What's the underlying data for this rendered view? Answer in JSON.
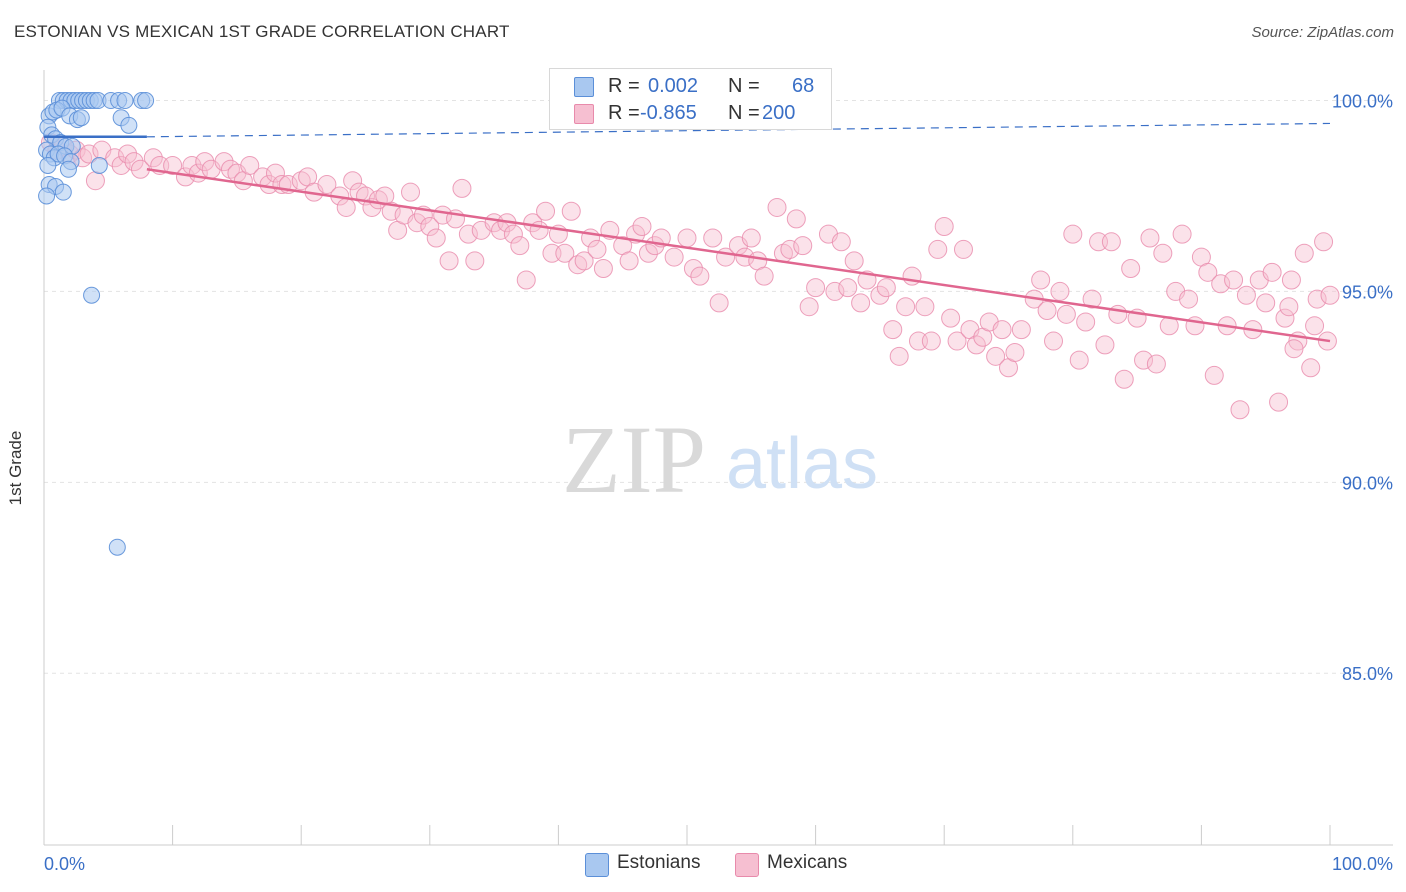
{
  "header": {
    "title": "ESTONIAN VS MEXICAN 1ST GRADE CORRELATION CHART",
    "source": "Source: ZipAtlas.com"
  },
  "legend": {
    "r_label": "R =",
    "n_label": "N =",
    "estonians": {
      "r": "0.002",
      "n": "68"
    },
    "mexicans": {
      "r": "-0.865",
      "n": "200"
    }
  },
  "watermark": {
    "zip": "ZIP",
    "atlas": "atlas"
  },
  "colors": {
    "estonian_fill": "#a9c8f0",
    "estonian_stroke": "#5b8fd8",
    "estonian_line": "#3a6fc6",
    "mexican_fill": "#f6bfd1",
    "mexican_stroke": "#e88aab",
    "mexican_line": "#e0668f",
    "axis_text": "#3a6fc6"
  },
  "chart_data": {
    "type": "scatter",
    "title": "ESTONIAN VS MEXICAN 1ST GRADE CORRELATION CHART",
    "xlabel": "",
    "ylabel": "1st Grade",
    "xlim": [
      0,
      100
    ],
    "ylim": [
      80.5,
      100.8
    ],
    "x_tick_labels": [
      "0.0%",
      "100.0%"
    ],
    "y_ticks": [
      100,
      95,
      90,
      85
    ],
    "y_tick_labels": [
      "100.0%",
      "95.0%",
      "90.0%",
      "85.0%"
    ],
    "legend_position": "top-center",
    "series": [
      {
        "name": "Estonians",
        "r": 0.002,
        "n": 68,
        "trend": {
          "x": [
            0,
            8
          ],
          "y": [
            99.05,
            99.05
          ],
          "dashed_extension_to": [
            100,
            99.4
          ]
        },
        "points": [
          [
            1.2,
            100
          ],
          [
            1.5,
            100
          ],
          [
            1.8,
            100
          ],
          [
            2.1,
            100
          ],
          [
            2.4,
            100
          ],
          [
            2.7,
            100
          ],
          [
            3.0,
            100
          ],
          [
            3.3,
            100
          ],
          [
            3.6,
            100
          ],
          [
            3.9,
            100
          ],
          [
            4.2,
            100
          ],
          [
            5.2,
            100
          ],
          [
            5.8,
            100
          ],
          [
            6.3,
            100
          ],
          [
            7.6,
            100
          ],
          [
            7.9,
            100
          ],
          [
            0.4,
            99.6
          ],
          [
            0.7,
            99.7
          ],
          [
            1.0,
            99.75
          ],
          [
            1.4,
            99.8
          ],
          [
            2.0,
            99.6
          ],
          [
            2.6,
            99.5
          ],
          [
            2.9,
            99.55
          ],
          [
            6.0,
            99.55
          ],
          [
            6.6,
            99.35
          ],
          [
            0.3,
            99.3
          ],
          [
            0.6,
            99.1
          ],
          [
            0.9,
            99.0
          ],
          [
            1.3,
            98.9
          ],
          [
            1.7,
            98.8
          ],
          [
            2.2,
            98.8
          ],
          [
            0.2,
            98.7
          ],
          [
            0.5,
            98.6
          ],
          [
            0.8,
            98.5
          ],
          [
            1.1,
            98.6
          ],
          [
            1.6,
            98.55
          ],
          [
            2.1,
            98.4
          ],
          [
            0.3,
            98.3
          ],
          [
            1.9,
            98.2
          ],
          [
            4.3,
            98.3
          ],
          [
            0.4,
            97.8
          ],
          [
            0.9,
            97.75
          ],
          [
            1.5,
            97.6
          ],
          [
            0.2,
            97.5
          ],
          [
            3.7,
            94.9
          ],
          [
            5.7,
            88.3
          ]
        ]
      },
      {
        "name": "Mexicans",
        "r": -0.865,
        "n": 200,
        "trend": {
          "x": [
            8,
            100
          ],
          "y": [
            98.2,
            93.7
          ]
        },
        "points": [
          [
            0.5,
            98.9
          ],
          [
            1.0,
            98.7
          ],
          [
            1.5,
            98.8
          ],
          [
            2.0,
            98.6
          ],
          [
            2.5,
            98.7
          ],
          [
            3.0,
            98.5
          ],
          [
            3.5,
            98.6
          ],
          [
            4.0,
            97.9
          ],
          [
            4.5,
            98.7
          ],
          [
            5.5,
            98.5
          ],
          [
            6.0,
            98.3
          ],
          [
            6.5,
            98.6
          ],
          [
            7.0,
            98.4
          ],
          [
            7.5,
            98.2
          ],
          [
            8.5,
            98.5
          ],
          [
            9.0,
            98.3
          ],
          [
            10,
            98.3
          ],
          [
            11,
            98.0
          ],
          [
            11.5,
            98.3
          ],
          [
            12,
            98.1
          ],
          [
            12.5,
            98.4
          ],
          [
            13,
            98.2
          ],
          [
            14,
            98.4
          ],
          [
            14.5,
            98.2
          ],
          [
            15,
            98.1
          ],
          [
            15.5,
            97.9
          ],
          [
            16,
            98.3
          ],
          [
            17,
            98.0
          ],
          [
            17.5,
            97.8
          ],
          [
            18,
            98.1
          ],
          [
            18.5,
            97.8
          ],
          [
            19,
            97.8
          ],
          [
            20,
            97.9
          ],
          [
            20.5,
            98.0
          ],
          [
            21,
            97.6
          ],
          [
            22,
            97.8
          ],
          [
            23,
            97.5
          ],
          [
            23.5,
            97.2
          ],
          [
            24,
            97.9
          ],
          [
            24.5,
            97.6
          ],
          [
            25,
            97.5
          ],
          [
            25.5,
            97.2
          ],
          [
            26,
            97.4
          ],
          [
            26.5,
            97.5
          ],
          [
            27,
            97.1
          ],
          [
            27.5,
            96.6
          ],
          [
            28,
            97.0
          ],
          [
            28.5,
            97.6
          ],
          [
            29,
            96.8
          ],
          [
            29.5,
            97.0
          ],
          [
            30,
            96.7
          ],
          [
            30.5,
            96.4
          ],
          [
            31,
            97.0
          ],
          [
            31.5,
            95.8
          ],
          [
            32,
            96.9
          ],
          [
            32.5,
            97.7
          ],
          [
            33,
            96.5
          ],
          [
            33.5,
            95.8
          ],
          [
            34,
            96.6
          ],
          [
            35,
            96.8
          ],
          [
            35.5,
            96.6
          ],
          [
            36,
            96.8
          ],
          [
            36.5,
            96.5
          ],
          [
            37,
            96.2
          ],
          [
            37.5,
            95.3
          ],
          [
            38,
            96.8
          ],
          [
            38.5,
            96.6
          ],
          [
            39,
            97.1
          ],
          [
            39.5,
            96.0
          ],
          [
            40,
            96.5
          ],
          [
            40.5,
            96.0
          ],
          [
            41,
            97.1
          ],
          [
            41.5,
            95.7
          ],
          [
            42,
            95.8
          ],
          [
            42.5,
            96.4
          ],
          [
            43,
            96.1
          ],
          [
            43.5,
            95.6
          ],
          [
            44,
            96.6
          ],
          [
            45,
            96.2
          ],
          [
            45.5,
            95.8
          ],
          [
            46,
            96.5
          ],
          [
            46.5,
            96.7
          ],
          [
            47,
            96.0
          ],
          [
            47.5,
            96.2
          ],
          [
            48,
            96.4
          ],
          [
            49,
            95.9
          ],
          [
            50,
            96.4
          ],
          [
            50.5,
            95.6
          ],
          [
            51,
            95.4
          ],
          [
            52,
            96.4
          ],
          [
            52.5,
            94.7
          ],
          [
            53,
            95.9
          ],
          [
            54,
            96.2
          ],
          [
            54.5,
            95.9
          ],
          [
            55,
            96.4
          ],
          [
            55.5,
            95.8
          ],
          [
            56,
            95.4
          ],
          [
            57,
            97.2
          ],
          [
            57.5,
            96.0
          ],
          [
            58,
            96.1
          ],
          [
            58.5,
            96.9
          ],
          [
            59,
            96.2
          ],
          [
            59.5,
            94.6
          ],
          [
            60,
            95.1
          ],
          [
            61,
            96.5
          ],
          [
            61.5,
            95.0
          ],
          [
            62,
            96.3
          ],
          [
            62.5,
            95.1
          ],
          [
            63,
            95.8
          ],
          [
            63.5,
            94.7
          ],
          [
            64,
            95.3
          ],
          [
            65,
            94.9
          ],
          [
            65.5,
            95.1
          ],
          [
            66,
            94.0
          ],
          [
            66.5,
            93.3
          ],
          [
            67,
            94.6
          ],
          [
            67.5,
            95.4
          ],
          [
            68,
            93.7
          ],
          [
            68.5,
            94.6
          ],
          [
            69,
            93.7
          ],
          [
            69.5,
            96.1
          ],
          [
            70,
            96.7
          ],
          [
            70.5,
            94.3
          ],
          [
            71,
            93.7
          ],
          [
            71.5,
            96.1
          ],
          [
            72,
            94.0
          ],
          [
            72.5,
            93.6
          ],
          [
            73,
            93.8
          ],
          [
            73.5,
            94.2
          ],
          [
            74,
            93.3
          ],
          [
            74.5,
            94.0
          ],
          [
            75,
            93.0
          ],
          [
            75.5,
            93.4
          ],
          [
            76,
            94.0
          ],
          [
            77,
            94.8
          ],
          [
            77.5,
            95.3
          ],
          [
            78,
            94.5
          ],
          [
            78.5,
            93.7
          ],
          [
            79,
            95.0
          ],
          [
            79.5,
            94.4
          ],
          [
            80,
            96.5
          ],
          [
            80.5,
            93.2
          ],
          [
            81,
            94.2
          ],
          [
            81.5,
            94.8
          ],
          [
            82,
            96.3
          ],
          [
            82.5,
            93.6
          ],
          [
            83,
            96.3
          ],
          [
            83.5,
            94.4
          ],
          [
            84,
            92.7
          ],
          [
            84.5,
            95.6
          ],
          [
            85,
            94.3
          ],
          [
            85.5,
            93.2
          ],
          [
            86,
            96.4
          ],
          [
            86.5,
            93.1
          ],
          [
            87,
            96.0
          ],
          [
            87.5,
            94.1
          ],
          [
            88,
            95.0
          ],
          [
            88.5,
            96.5
          ],
          [
            89,
            94.8
          ],
          [
            89.5,
            94.1
          ],
          [
            90,
            95.9
          ],
          [
            90.5,
            95.5
          ],
          [
            91,
            92.8
          ],
          [
            91.5,
            95.2
          ],
          [
            92,
            94.1
          ],
          [
            92.5,
            95.3
          ],
          [
            93,
            91.9
          ],
          [
            93.5,
            94.9
          ],
          [
            94,
            94.0
          ],
          [
            94.5,
            95.3
          ],
          [
            95,
            94.7
          ],
          [
            95.5,
            95.5
          ],
          [
            96,
            92.1
          ],
          [
            96.5,
            94.3
          ],
          [
            97,
            95.3
          ],
          [
            97.5,
            93.7
          ],
          [
            98,
            96.0
          ],
          [
            98.5,
            93.0
          ],
          [
            99,
            94.8
          ],
          [
            99.5,
            96.3
          ],
          [
            100,
            94.9
          ],
          [
            98.8,
            94.1
          ],
          [
            99.8,
            93.7
          ],
          [
            97.2,
            93.5
          ],
          [
            96.8,
            94.6
          ]
        ]
      }
    ]
  },
  "x_axis": {
    "left_label": "0.0%",
    "right_label": "100.0%"
  },
  "bottom_legend": {
    "estonians": "Estonians",
    "mexicans": "Mexicans"
  }
}
